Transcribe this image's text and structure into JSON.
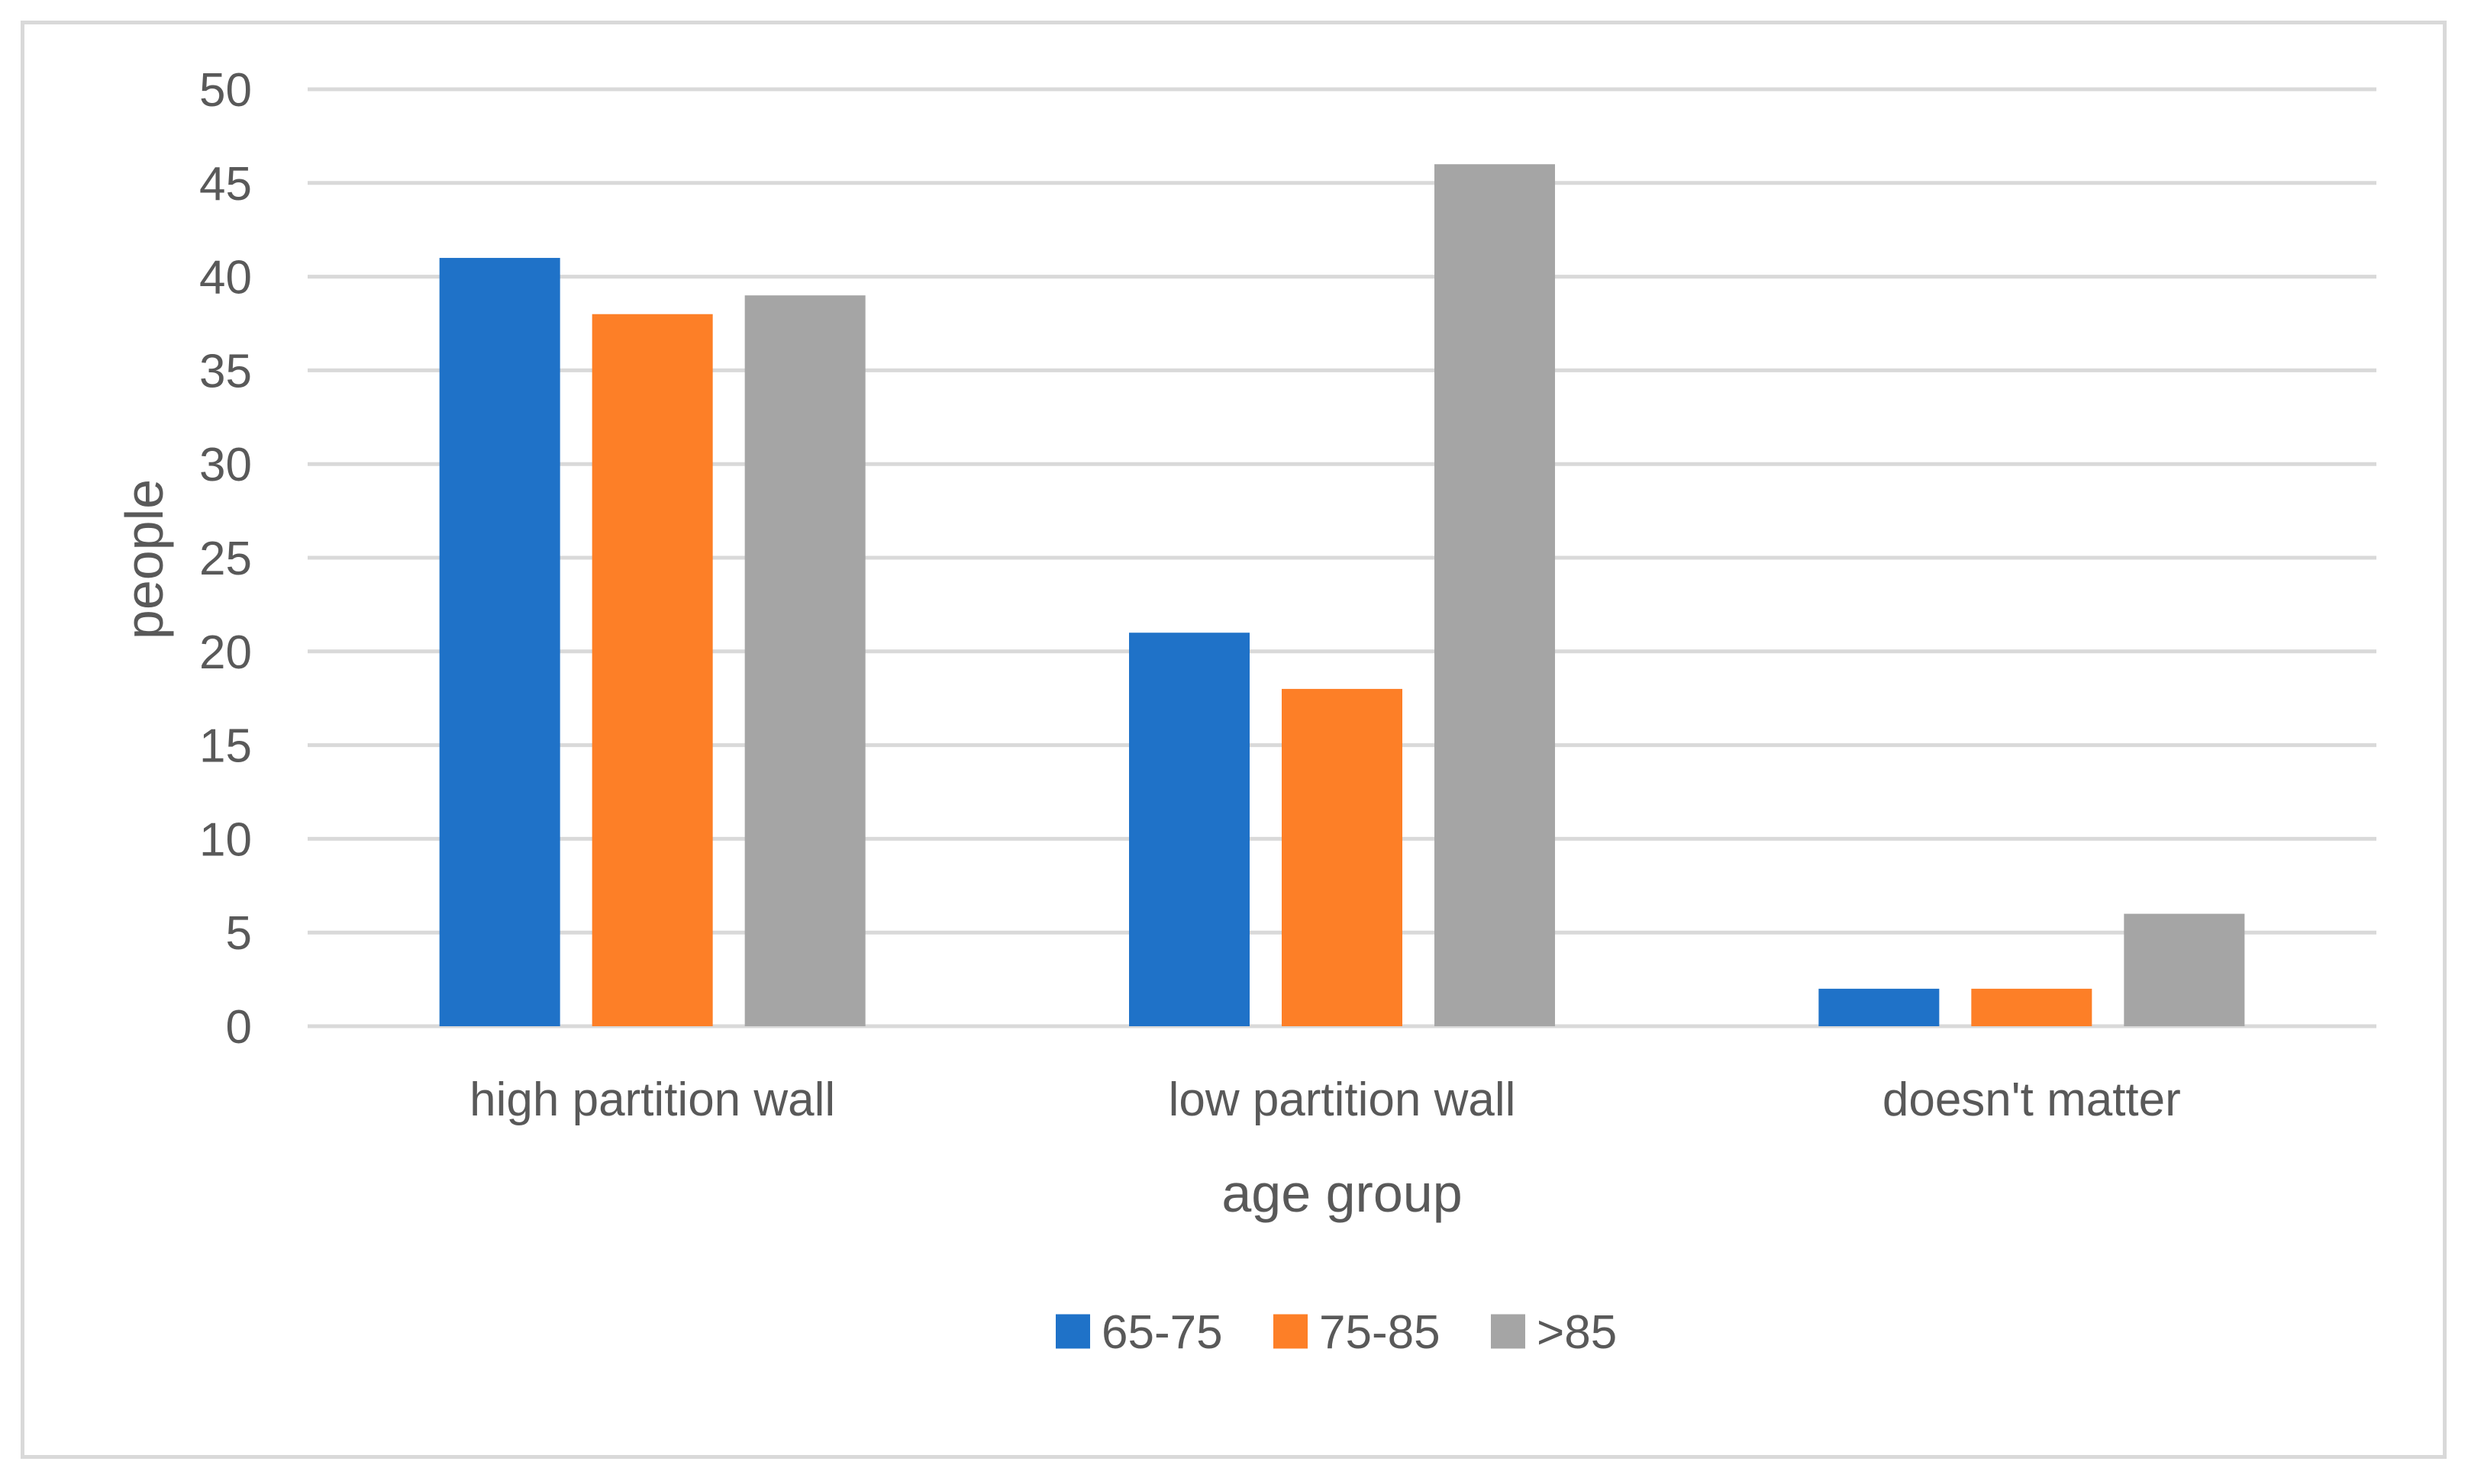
{
  "chart_data": {
    "type": "bar",
    "title": "",
    "xlabel": "age group",
    "ylabel": "people",
    "categories": [
      "high partition wall",
      "low partition wall",
      "doesn't matter"
    ],
    "series": [
      {
        "name": "65-75",
        "color": "#1f72c8",
        "values": [
          41,
          21,
          2
        ]
      },
      {
        "name": "75-85",
        "color": "#fd7f27",
        "values": [
          38,
          18,
          2
        ]
      },
      {
        "name": ">85",
        "color": "#a5a5a5",
        "values": [
          39,
          46,
          6
        ]
      }
    ],
    "ylim": [
      0,
      50
    ],
    "yticks": [
      0,
      5,
      10,
      15,
      20,
      25,
      30,
      35,
      40,
      45,
      50
    ],
    "grid": true,
    "legend": "bottom-center"
  },
  "colors": {
    "gridline": "#d9d9d9",
    "text": "#595959",
    "frame": "#d9d9d9"
  }
}
